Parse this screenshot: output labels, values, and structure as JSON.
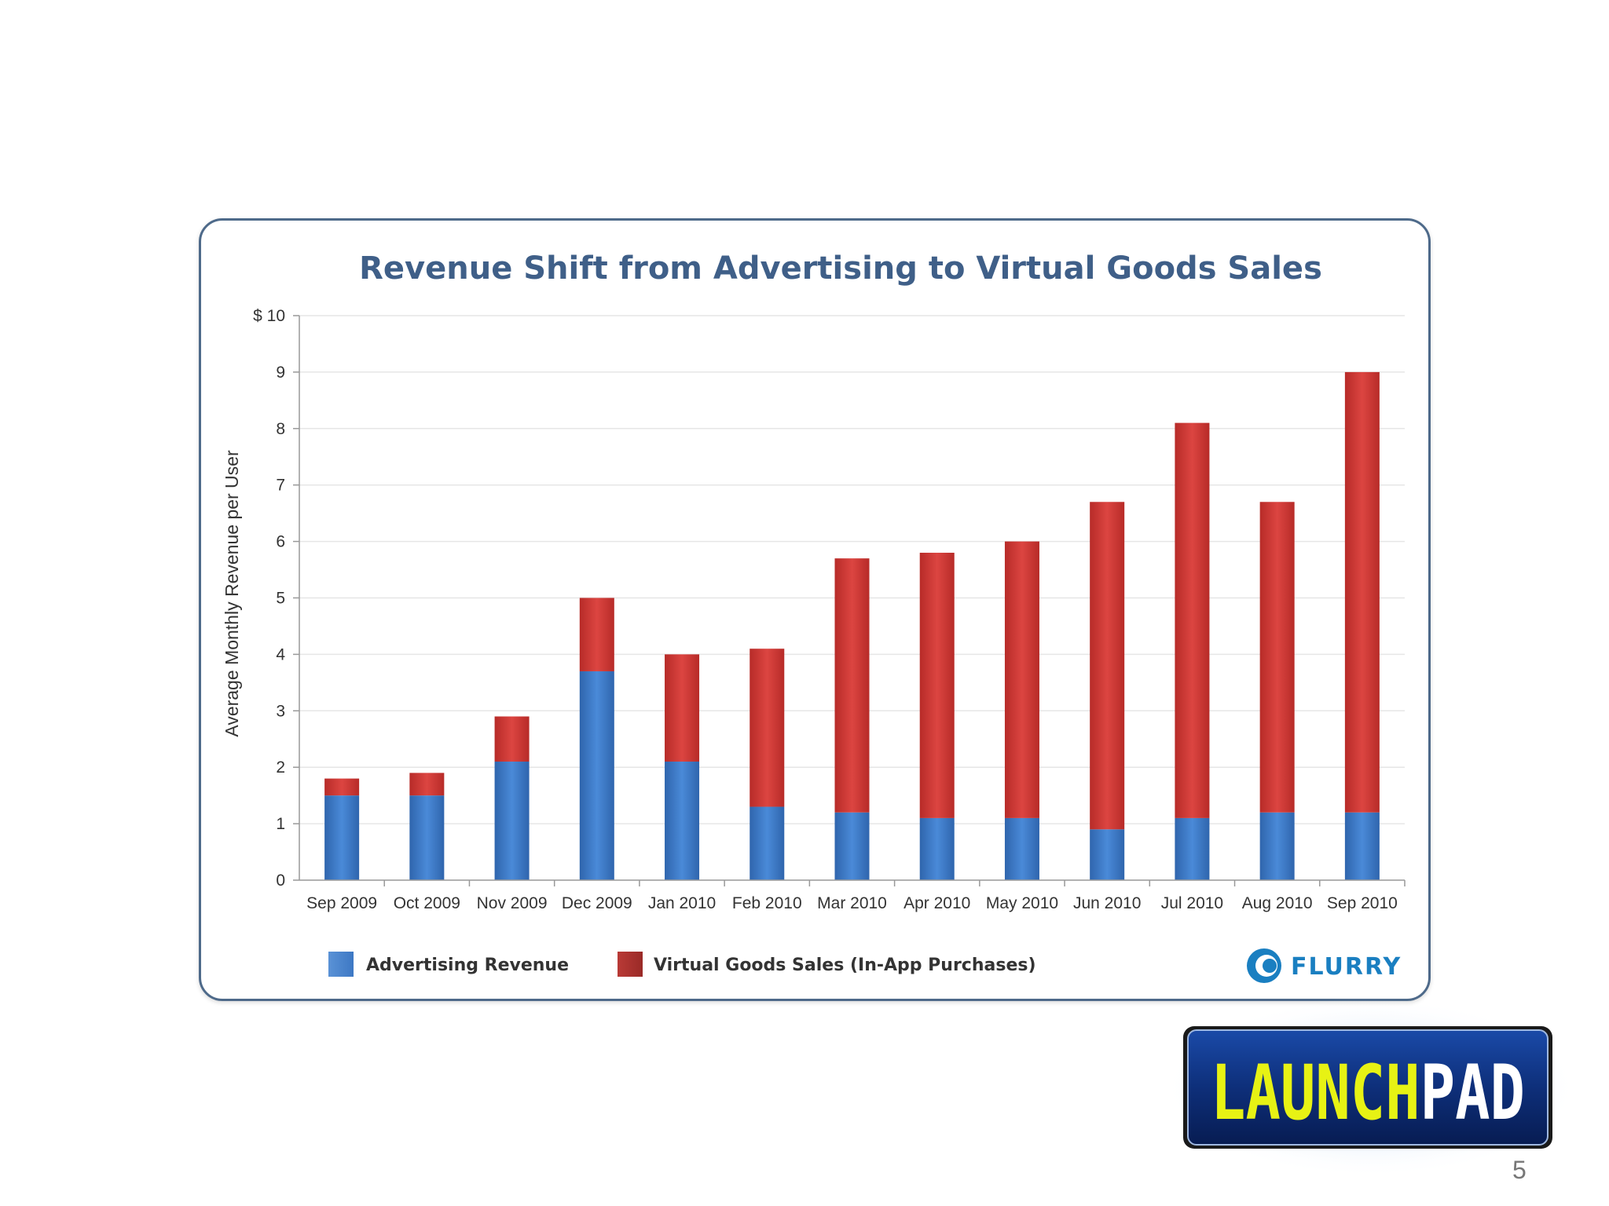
{
  "chart_data": {
    "type": "bar",
    "stacked": true,
    "title": "Revenue Shift from Advertising to Virtual Goods Sales",
    "ylabel": "Average Monthly Revenue per User",
    "y_tick_labels": [
      "0",
      "1",
      "2",
      "3",
      "4",
      "5",
      "6",
      "7",
      "8",
      "9",
      "$ 10"
    ],
    "ylim": [
      0,
      10
    ],
    "grid": true,
    "legend_position": "bottom",
    "categories": [
      "Sep 2009",
      "Oct 2009",
      "Nov 2009",
      "Dec 2009",
      "Jan 2010",
      "Feb 2010",
      "Mar 2010",
      "Apr 2010",
      "May 2010",
      "Jun 2010",
      "Jul 2010",
      "Aug 2010",
      "Sep 2010"
    ],
    "series": [
      {
        "name": "Advertising Revenue",
        "color": "#3e7fd0",
        "values": [
          1.5,
          1.5,
          2.1,
          3.7,
          2.1,
          1.3,
          1.2,
          1.1,
          1.1,
          0.9,
          1.1,
          1.2,
          1.2
        ]
      },
      {
        "name": "Virtual Goods Sales (In-App Purchases)",
        "color": "#d23a36",
        "values": [
          0.3,
          0.4,
          0.8,
          1.3,
          1.9,
          2.8,
          4.5,
          4.7,
          4.9,
          5.8,
          7.0,
          5.5,
          7.8
        ]
      }
    ]
  },
  "branding": {
    "flurry_logo": "FLURRY",
    "launchpad_logo_a": "LAUNCH",
    "launchpad_logo_b": "PAD"
  },
  "page_number": "5"
}
